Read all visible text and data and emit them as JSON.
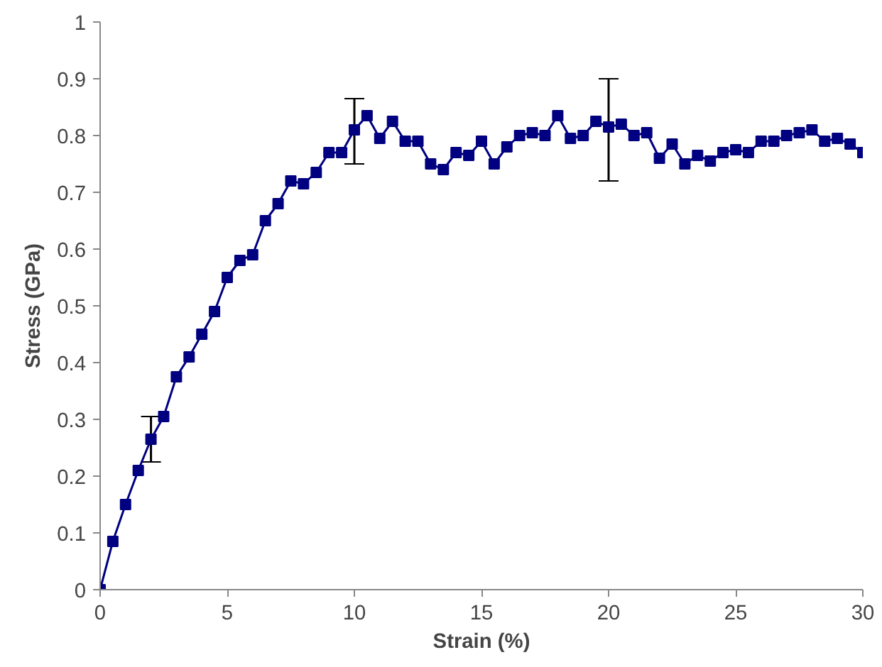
{
  "chart_data": {
    "type": "line",
    "xlabel": "Strain (%)",
    "ylabel": "Stress (GPa)",
    "xlim": [
      0,
      30
    ],
    "xticks": [
      0,
      5,
      10,
      15,
      20,
      25,
      30
    ],
    "ylim": [
      0,
      1
    ],
    "yticks": [
      0,
      0.1,
      0.2,
      0.3,
      0.4,
      0.5,
      0.6,
      0.7,
      0.8,
      0.9,
      1
    ],
    "grid": false,
    "marker": "square",
    "line_style": "solid",
    "series": [
      {
        "color": "#000080",
        "x": [
          0,
          0.5,
          1,
          1.5,
          2,
          2.5,
          3,
          3.5,
          4,
          4.5,
          5,
          5.5,
          6,
          6.5,
          7,
          7.5,
          8,
          8.5,
          9,
          9.5,
          10,
          10.5,
          11,
          11.5,
          12,
          12.5,
          13,
          13.5,
          14,
          14.5,
          15,
          15.5,
          16,
          16.5,
          17,
          17.5,
          18,
          18.5,
          19,
          19.5,
          20,
          20.5,
          21,
          21.5,
          22,
          22.5,
          23,
          23.5,
          24,
          24.5,
          25,
          25.5,
          26,
          26.5,
          27,
          27.5,
          28,
          28.5,
          29,
          29.5,
          30
        ],
        "values": [
          0,
          0.085,
          0.15,
          0.21,
          0.265,
          0.305,
          0.375,
          0.41,
          0.45,
          0.49,
          0.55,
          0.58,
          0.59,
          0.65,
          0.68,
          0.72,
          0.715,
          0.735,
          0.77,
          0.77,
          0.81,
          0.835,
          0.795,
          0.825,
          0.79,
          0.79,
          0.75,
          0.74,
          0.77,
          0.765,
          0.79,
          0.75,
          0.78,
          0.8,
          0.805,
          0.8,
          0.835,
          0.795,
          0.8,
          0.825,
          0.815,
          0.82,
          0.8,
          0.805,
          0.76,
          0.785,
          0.75,
          0.765,
          0.755,
          0.77,
          0.775,
          0.77,
          0.79,
          0.79,
          0.8,
          0.805,
          0.81,
          0.79,
          0.795,
          0.785,
          0.77
        ],
        "errors": [
          null,
          null,
          null,
          null,
          [
            0.225,
            0.305
          ],
          null,
          null,
          null,
          null,
          null,
          null,
          null,
          null,
          null,
          null,
          null,
          null,
          null,
          null,
          null,
          [
            0.75,
            0.865
          ],
          null,
          null,
          null,
          null,
          null,
          null,
          null,
          null,
          null,
          null,
          null,
          null,
          null,
          null,
          null,
          null,
          null,
          null,
          null,
          [
            0.72,
            0.9
          ],
          null,
          null,
          null,
          null,
          null,
          null,
          null,
          null,
          null,
          null,
          null,
          null,
          null,
          null,
          null,
          null,
          null,
          null,
          null,
          null
        ]
      }
    ]
  }
}
